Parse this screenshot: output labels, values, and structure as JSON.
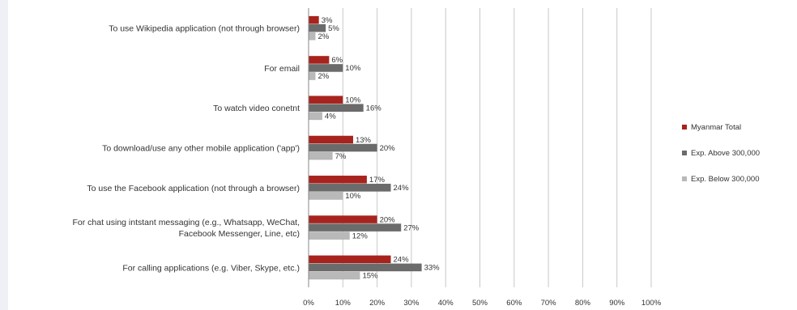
{
  "chart_data": {
    "type": "bar",
    "orientation": "horizontal",
    "categories": [
      "To use Wikipedia application (not through browser)",
      "For email",
      "To watch video conetnt",
      "To download/use any other mobile application ('app')",
      "To use the Facebook application (not through a browser)",
      "For chat using intstant messaging (e.g., Whatsapp, WeChat,\nFacebook Messenger, Line, etc)",
      "For calling applications (e.g. Viber, Skype, etc.)"
    ],
    "series": [
      {
        "name": "Myanmar Total",
        "color": "#a8231d",
        "values": [
          3,
          6,
          10,
          13,
          17,
          20,
          24
        ],
        "labels": [
          "3%",
          "6%",
          "10%",
          "13%",
          "17%",
          "20%",
          "24%"
        ]
      },
      {
        "name": "Exp. Above 300,000",
        "color": "#6b6b6b",
        "values": [
          5,
          10,
          16,
          20,
          24,
          27,
          33
        ],
        "labels": [
          "5%",
          "10%",
          "16%",
          "20%",
          "24%",
          "27%",
          "33%"
        ]
      },
      {
        "name": "Exp. Below 300,000",
        "color": "#b9b9b9",
        "values": [
          2,
          2,
          4,
          7,
          10,
          12,
          15
        ],
        "labels": [
          "2%",
          "2%",
          "4%",
          "7%",
          "10%",
          "12%",
          "15%"
        ]
      }
    ],
    "x_ticks": [
      "0%",
      "10%",
      "20%",
      "30%",
      "40%",
      "50%",
      "60%",
      "70%",
      "80%",
      "90%",
      "100%"
    ],
    "xlim": [
      0,
      100
    ],
    "grid": true,
    "legend_position": "right"
  }
}
